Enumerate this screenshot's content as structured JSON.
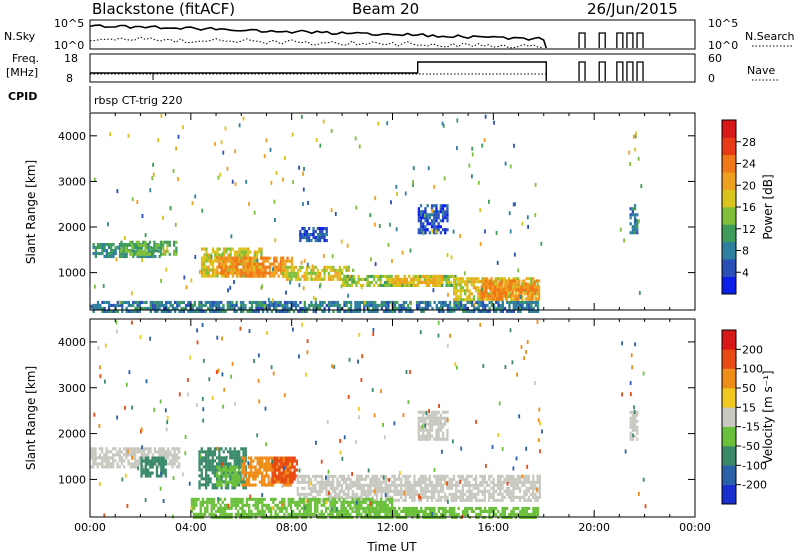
{
  "header": {
    "radar": "Blackstone (fitACF)",
    "beam": "Beam 20",
    "date": "26/Jun/2015"
  },
  "top_panels": {
    "nsky": {
      "left_label": "N.Sky",
      "left_ticks": [
        "10^5",
        "10^0"
      ],
      "right_ticks": [
        "10^5",
        "10^0"
      ],
      "right_label": "N.Search"
    },
    "freq": {
      "left_label_line1": "Freq.",
      "left_label_line2": "[MHz]",
      "left_ticks": [
        "18",
        "8"
      ],
      "right_ticks": [
        "60",
        "0"
      ],
      "right_label": "Nave"
    },
    "cpid": {
      "label": "CPID",
      "text": "rbsp CT-trig 220"
    }
  },
  "power_colorbar": {
    "label": "Power [dB]",
    "ticks": [
      "28",
      "24",
      "20",
      "16",
      "12",
      "8",
      "4"
    ],
    "colors": [
      "#0a1ee8",
      "#2a4fb8",
      "#2e7f9e",
      "#3f9c5a",
      "#7fc03a",
      "#d8c41a",
      "#f0a020",
      "#f07818",
      "#e83a14",
      "#d81818"
    ]
  },
  "velocity_colorbar": {
    "label": "Velocity [m s⁻¹]",
    "ticks": [
      "200",
      "100",
      "50",
      "15",
      "-15",
      "-50",
      "-100",
      "-200"
    ],
    "colors": [
      "#1a2fd0",
      "#2a60a8",
      "#3a8a6a",
      "#6ac03a",
      "#c8c8c0",
      "#f0c820",
      "#f08c18",
      "#e84a14",
      "#d81818"
    ]
  },
  "chart_data": [
    {
      "type": "heatmap",
      "name": "Power",
      "ylabel": "Slant Range [km]",
      "xlabel": "",
      "y_ticks": [
        "4000",
        "3000",
        "2000",
        "1000"
      ],
      "ylim": [
        180,
        4500
      ],
      "xlim_hours": [
        0,
        24
      ],
      "blobs": [
        {
          "t0": 0.1,
          "t1": 2.8,
          "r0": 1350,
          "r1": 1650,
          "value": 12
        },
        {
          "t0": 1.2,
          "t1": 3.4,
          "r0": 1400,
          "r1": 1700,
          "value": 16
        },
        {
          "t0": 4.4,
          "t1": 6.8,
          "r0": 950,
          "r1": 1550,
          "value": 22
        },
        {
          "t0": 5.0,
          "t1": 8.0,
          "r0": 900,
          "r1": 1350,
          "value": 28
        },
        {
          "t0": 7.6,
          "t1": 10.4,
          "r0": 850,
          "r1": 1150,
          "value": 22
        },
        {
          "t0": 10.0,
          "t1": 14.5,
          "r0": 700,
          "r1": 950,
          "value": 18
        },
        {
          "t0": 12.0,
          "t1": 14.0,
          "r0": 700,
          "r1": 950,
          "value": 24
        },
        {
          "t0": 14.4,
          "t1": 17.8,
          "r0": 400,
          "r1": 900,
          "value": 22
        },
        {
          "t0": 15.5,
          "t1": 17.8,
          "r0": 450,
          "r1": 850,
          "value": 28
        },
        {
          "t0": 8.3,
          "t1": 9.4,
          "r0": 1700,
          "r1": 2000,
          "value": 6
        },
        {
          "t0": 13.0,
          "t1": 14.2,
          "r0": 1900,
          "r1": 2500,
          "value": 6
        },
        {
          "t0": 21.4,
          "t1": 21.7,
          "r0": 1900,
          "r1": 2500,
          "value": 10
        },
        {
          "t0": 0.1,
          "t1": 17.8,
          "r0": 180,
          "r1": 380,
          "value": 10
        }
      ]
    },
    {
      "type": "heatmap",
      "name": "Velocity",
      "ylabel": "Slant Range [km]",
      "xlabel": "Time UT",
      "x_ticks": [
        "00:00",
        "04:00",
        "08:00",
        "12:00",
        "16:00",
        "20:00",
        "00:00"
      ],
      "y_ticks": [
        "4000",
        "3000",
        "2000",
        "1000"
      ],
      "ylim": [
        180,
        4500
      ],
      "xlim_hours": [
        0,
        24
      ],
      "blobs": [
        {
          "t0": 0.0,
          "t1": 3.5,
          "r0": 1300,
          "r1": 1700,
          "value": 0
        },
        {
          "t0": 2.0,
          "t1": 3.0,
          "r0": 1100,
          "r1": 1500,
          "value": -60
        },
        {
          "t0": 4.3,
          "t1": 6.2,
          "r0": 800,
          "r1": 1700,
          "value": -60
        },
        {
          "t0": 5.0,
          "t1": 5.9,
          "r0": 900,
          "r1": 1300,
          "value": -40
        },
        {
          "t0": 6.0,
          "t1": 8.0,
          "r0": 850,
          "r1": 1500,
          "value": 60
        },
        {
          "t0": 7.2,
          "t1": 8.2,
          "r0": 950,
          "r1": 1500,
          "value": 120
        },
        {
          "t0": 8.2,
          "t1": 17.8,
          "r0": 550,
          "r1": 1100,
          "value": 0
        },
        {
          "t0": 4.0,
          "t1": 12.0,
          "r0": 180,
          "r1": 600,
          "value": -30
        },
        {
          "t0": 11.0,
          "t1": 17.8,
          "r0": 180,
          "r1": 400,
          "value": -20
        },
        {
          "t0": 13.0,
          "t1": 14.2,
          "r0": 1900,
          "r1": 2500,
          "value": 0
        },
        {
          "t0": 21.4,
          "t1": 21.7,
          "r0": 1900,
          "r1": 2500,
          "value": 0
        }
      ]
    }
  ]
}
